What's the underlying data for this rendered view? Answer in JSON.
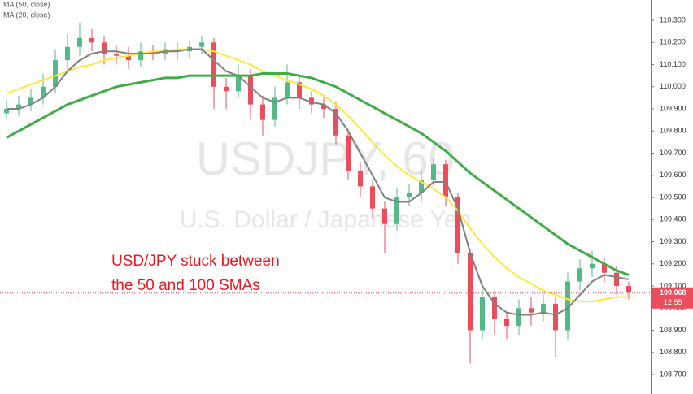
{
  "chart_data": {
    "type": "candlestick",
    "legend": [
      "MA (50, close)",
      "MA (20, close)"
    ],
    "watermark": "USDJPY, 60",
    "watermark_subtitle": "U.S. Dollar / Japanese Yen",
    "annotation": [
      "USD/JPY stuck between",
      "the 50 and 100 SMAs"
    ],
    "up_color": "#53b987",
    "down_color": "#eb4d5c",
    "candles": {
      "open": [
        109.88,
        109.9,
        109.92,
        109.95,
        110.0,
        110.12,
        110.18,
        110.22,
        110.2,
        110.15,
        110.14,
        110.12,
        110.16,
        110.15,
        110.17,
        110.16,
        110.18,
        110.2,
        110.0,
        109.98,
        110.05,
        109.92,
        109.85,
        109.95,
        110.02,
        109.95,
        109.92,
        109.9,
        109.78,
        109.62,
        109.55,
        109.45,
        109.38,
        109.5,
        109.52,
        109.58,
        109.65,
        109.5,
        109.25,
        108.9,
        109.05,
        108.95,
        108.92,
        109.0,
        108.98,
        109.02,
        108.9,
        109.12,
        109.18,
        109.2,
        109.16,
        109.1
      ],
      "high": [
        109.94,
        109.96,
        109.99,
        110.06,
        110.17,
        110.24,
        110.29,
        110.26,
        110.23,
        110.19,
        110.18,
        110.2,
        110.19,
        110.2,
        110.2,
        110.21,
        110.23,
        110.22,
        110.04,
        110.1,
        110.08,
        109.96,
        110.0,
        110.1,
        110.05,
        109.98,
        109.95,
        109.93,
        109.81,
        109.66,
        109.58,
        109.48,
        109.54,
        109.56,
        109.62,
        109.68,
        109.67,
        109.52,
        109.27,
        109.1,
        109.08,
        108.98,
        109.04,
        109.05,
        109.06,
        109.05,
        109.16,
        109.22,
        109.26,
        109.23,
        109.19,
        109.12
      ],
      "low": [
        109.85,
        109.87,
        109.89,
        109.92,
        109.97,
        110.08,
        110.14,
        110.16,
        110.1,
        110.1,
        110.08,
        110.09,
        110.12,
        110.12,
        110.12,
        110.13,
        110.15,
        109.9,
        109.9,
        109.95,
        109.85,
        109.78,
        109.82,
        109.92,
        109.9,
        109.88,
        109.86,
        109.74,
        109.58,
        109.5,
        109.4,
        109.25,
        109.35,
        109.46,
        109.48,
        109.55,
        109.46,
        109.2,
        108.75,
        108.86,
        108.88,
        108.86,
        108.88,
        108.92,
        108.94,
        108.78,
        108.86,
        109.08,
        109.14,
        109.12,
        109.06,
        109.04
      ],
      "close": [
        109.9,
        109.92,
        109.95,
        110.0,
        110.12,
        110.18,
        110.22,
        110.2,
        110.15,
        110.14,
        110.12,
        110.16,
        110.15,
        110.17,
        110.16,
        110.18,
        110.2,
        110.0,
        109.98,
        110.05,
        109.92,
        109.85,
        109.95,
        110.02,
        109.95,
        109.92,
        109.9,
        109.78,
        109.62,
        109.55,
        109.45,
        109.38,
        109.5,
        109.52,
        109.58,
        109.65,
        109.5,
        109.25,
        108.9,
        109.05,
        108.95,
        108.92,
        109.0,
        108.98,
        109.02,
        108.9,
        109.12,
        109.18,
        109.2,
        109.16,
        109.1,
        109.07
      ]
    },
    "lines": [
      {
        "name": "MA (50, close)",
        "color": "#ffe83a",
        "width": 2,
        "values": [
          109.97,
          109.99,
          110.01,
          110.03,
          110.05,
          110.07,
          110.09,
          110.1,
          110.12,
          110.13,
          110.14,
          110.15,
          110.16,
          110.16,
          110.17,
          110.17,
          110.17,
          110.16,
          110.14,
          110.12,
          110.1,
          110.07,
          110.05,
          110.03,
          110.01,
          109.99,
          109.96,
          109.92,
          109.87,
          109.81,
          109.75,
          109.69,
          109.64,
          109.6,
          109.57,
          109.54,
          109.5,
          109.44,
          109.36,
          109.29,
          109.23,
          109.18,
          109.14,
          109.11,
          109.08,
          109.06,
          109.04,
          109.03,
          109.03,
          109.04,
          109.05,
          109.05
        ]
      },
      {
        "name": "MA (20, close)",
        "color": "#808080",
        "width": 2,
        "values": [
          109.9,
          109.9,
          109.92,
          109.95,
          110.0,
          110.07,
          110.12,
          110.15,
          110.16,
          110.16,
          110.15,
          110.15,
          110.15,
          110.16,
          110.16,
          110.17,
          110.17,
          110.12,
          110.07,
          110.05,
          110.0,
          109.95,
          109.93,
          109.95,
          109.95,
          109.93,
          109.92,
          109.88,
          109.8,
          109.7,
          109.6,
          109.5,
          109.48,
          109.48,
          109.52,
          109.57,
          109.57,
          109.45,
          109.25,
          109.1,
          109.02,
          108.98,
          108.97,
          108.97,
          108.98,
          108.97,
          109.0,
          109.06,
          109.12,
          109.15,
          109.14,
          109.13
        ]
      },
      {
        "color": "#3fae49",
        "width": 3,
        "values": [
          109.77,
          109.8,
          109.83,
          109.86,
          109.89,
          109.92,
          109.94,
          109.96,
          109.98,
          110.0,
          110.01,
          110.02,
          110.03,
          110.04,
          110.04,
          110.05,
          110.05,
          110.05,
          110.05,
          110.05,
          110.05,
          110.06,
          110.06,
          110.06,
          110.05,
          110.04,
          110.02,
          110.0,
          109.97,
          109.94,
          109.91,
          109.88,
          109.85,
          109.82,
          109.79,
          109.75,
          109.71,
          109.66,
          109.61,
          109.57,
          109.53,
          109.49,
          109.45,
          109.41,
          109.37,
          109.33,
          109.29,
          109.26,
          109.23,
          109.2,
          109.17,
          109.15
        ]
      }
    ],
    "last_price": {
      "value": 109.068,
      "label": "109.068"
    },
    "countdown": "12:55",
    "ylim": [
      108.612,
      110.392
    ],
    "yticks": [
      {
        "value": 108.7,
        "label": "108.700"
      },
      {
        "value": 108.8,
        "label": "108.800"
      },
      {
        "value": 108.9,
        "label": "108.900"
      },
      {
        "value": 109.0,
        "label": "109.000"
      },
      {
        "value": 109.1,
        "label": "109.100"
      },
      {
        "value": 109.2,
        "label": "109.200"
      },
      {
        "value": 109.3,
        "label": "109.300"
      },
      {
        "value": 109.4,
        "label": "109.400"
      },
      {
        "value": 109.5,
        "label": "109.500"
      },
      {
        "value": 109.6,
        "label": "109.600"
      },
      {
        "value": 109.7,
        "label": "109.700"
      },
      {
        "value": 109.8,
        "label": "109.800"
      },
      {
        "value": 109.9,
        "label": "109.900"
      },
      {
        "value": 110.0,
        "label": "110.000"
      },
      {
        "value": 110.1,
        "label": "110.100"
      },
      {
        "value": 110.2,
        "label": "110.200"
      },
      {
        "value": 110.3,
        "label": "110.300"
      }
    ]
  }
}
